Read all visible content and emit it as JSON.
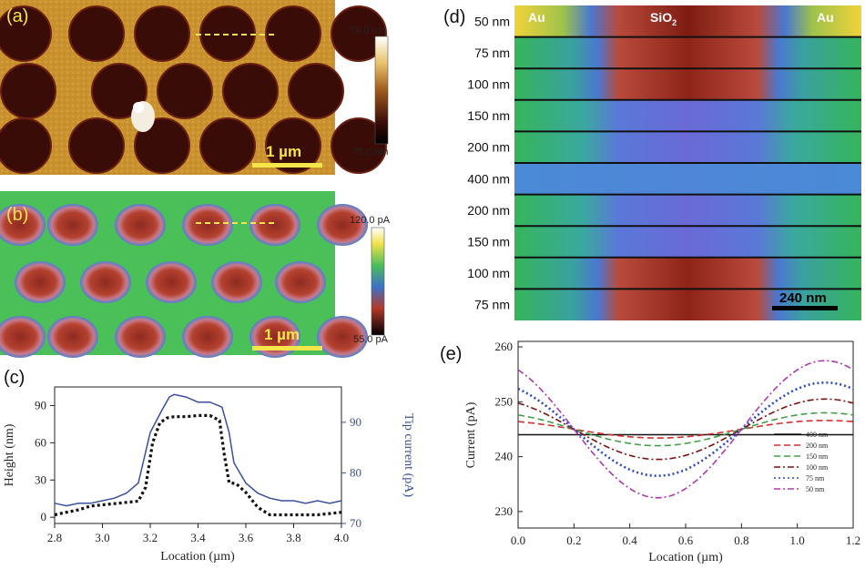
{
  "figure": {
    "panel_labels": [
      "(a)",
      "(b)",
      "(c)",
      "(d)",
      "(e)"
    ]
  },
  "panel_a": {
    "scalebar": "1 µm",
    "colorbar": {
      "max": "75.0 nm",
      "min": "-75.0 nm"
    },
    "colors": {
      "background": "#c9922e",
      "hole": "#3a0c08"
    }
  },
  "panel_b": {
    "scalebar": "1 µm",
    "colorbar": {
      "max": "120.0 pA",
      "min": "55.0 pA"
    },
    "colors": {
      "background": "#4bbf58",
      "spot": "#a83a2a"
    }
  },
  "panel_d": {
    "left_label": "Au",
    "center_label_main": "SiO",
    "center_label_sub": "2",
    "right_label": "Au",
    "scalebar": "240 nm",
    "row_labels": [
      "50 nm",
      "75 nm",
      "100 nm",
      "150 nm",
      "200 nm",
      "400 nm",
      "200 nm",
      "150 nm",
      "100 nm",
      "75 nm"
    ]
  },
  "chart_data": [
    {
      "panel": "c",
      "type": "line",
      "xlabel": "Location (µm)",
      "ylabel": "Height (nm)",
      "y2label": "Tip current (pA)",
      "xlim": [
        2.8,
        4.0
      ],
      "ylim": [
        -5,
        105
      ],
      "y2lim": [
        70,
        97
      ],
      "xticks": [
        "2.8",
        "3.0",
        "3.2",
        "3.4",
        "3.6",
        "3.8",
        "4.0"
      ],
      "yticks": [
        "0",
        "30",
        "60",
        "90"
      ],
      "y2ticks": [
        "70",
        "80",
        "90"
      ],
      "series": [
        {
          "name": "Height",
          "axis": "left",
          "color": "#111111",
          "style": "dotted",
          "x": [
            2.8,
            2.85,
            2.9,
            2.95,
            3.0,
            3.05,
            3.1,
            3.15,
            3.18,
            3.21,
            3.24,
            3.27,
            3.3,
            3.35,
            3.4,
            3.45,
            3.49,
            3.51,
            3.53,
            3.56,
            3.6,
            3.65,
            3.7,
            3.75,
            3.8,
            3.85,
            3.9,
            3.95,
            4.0
          ],
          "y": [
            2,
            4,
            6,
            9,
            10,
            11,
            12,
            13,
            24,
            60,
            76,
            80,
            81,
            81,
            82,
            82,
            78,
            50,
            28,
            27,
            20,
            8,
            2,
            2,
            2,
            2,
            2,
            3,
            4
          ]
        },
        {
          "name": "Tip current",
          "axis": "right",
          "color": "#3a4fa0",
          "style": "solid",
          "x": [
            2.8,
            2.85,
            2.9,
            2.95,
            3.0,
            3.05,
            3.1,
            3.15,
            3.2,
            3.25,
            3.28,
            3.3,
            3.35,
            3.4,
            3.45,
            3.5,
            3.53,
            3.55,
            3.6,
            3.65,
            3.7,
            3.75,
            3.8,
            3.85,
            3.9,
            3.95,
            4.0
          ],
          "y": [
            74,
            73.5,
            74,
            74,
            74.5,
            75,
            76,
            78,
            88,
            92.5,
            95,
            95.5,
            95,
            94,
            94,
            93,
            88,
            82,
            78,
            76,
            75,
            74.5,
            74.5,
            74,
            74.5,
            74,
            74.5
          ]
        }
      ]
    },
    {
      "panel": "e",
      "type": "line",
      "xlabel": "Location (µm)",
      "ylabel": "Current (pA)",
      "xlim": [
        0.0,
        1.2
      ],
      "ylim": [
        227,
        261
      ],
      "xticks": [
        "0.0",
        "0.2",
        "0.4",
        "0.6",
        "0.8",
        "1.0",
        "1.2"
      ],
      "yticks": [
        "230",
        "240",
        "250",
        "260"
      ],
      "legend_position": "lower-right",
      "series": [
        {
          "name": "400 nm",
          "color": "#111111",
          "style": "solid",
          "base": 244,
          "amp": 0.0
        },
        {
          "name": "200 nm",
          "color": "#d32f2f",
          "style": "dashed",
          "base": 245,
          "amp": 1.6
        },
        {
          "name": "150 nm",
          "color": "#43a047",
          "style": "dashed",
          "base": 245,
          "amp": 3.0
        },
        {
          "name": "100 nm",
          "color": "#7a1212",
          "style": "dashdot",
          "base": 245,
          "amp": 5.5
        },
        {
          "name": "75 nm",
          "color": "#2c4bbd",
          "style": "dotted",
          "base": 245,
          "amp": 8.5
        },
        {
          "name": "50 nm",
          "color": "#b039b0",
          "style": "dashdot",
          "base": 245,
          "amp": 12.5
        }
      ]
    }
  ]
}
